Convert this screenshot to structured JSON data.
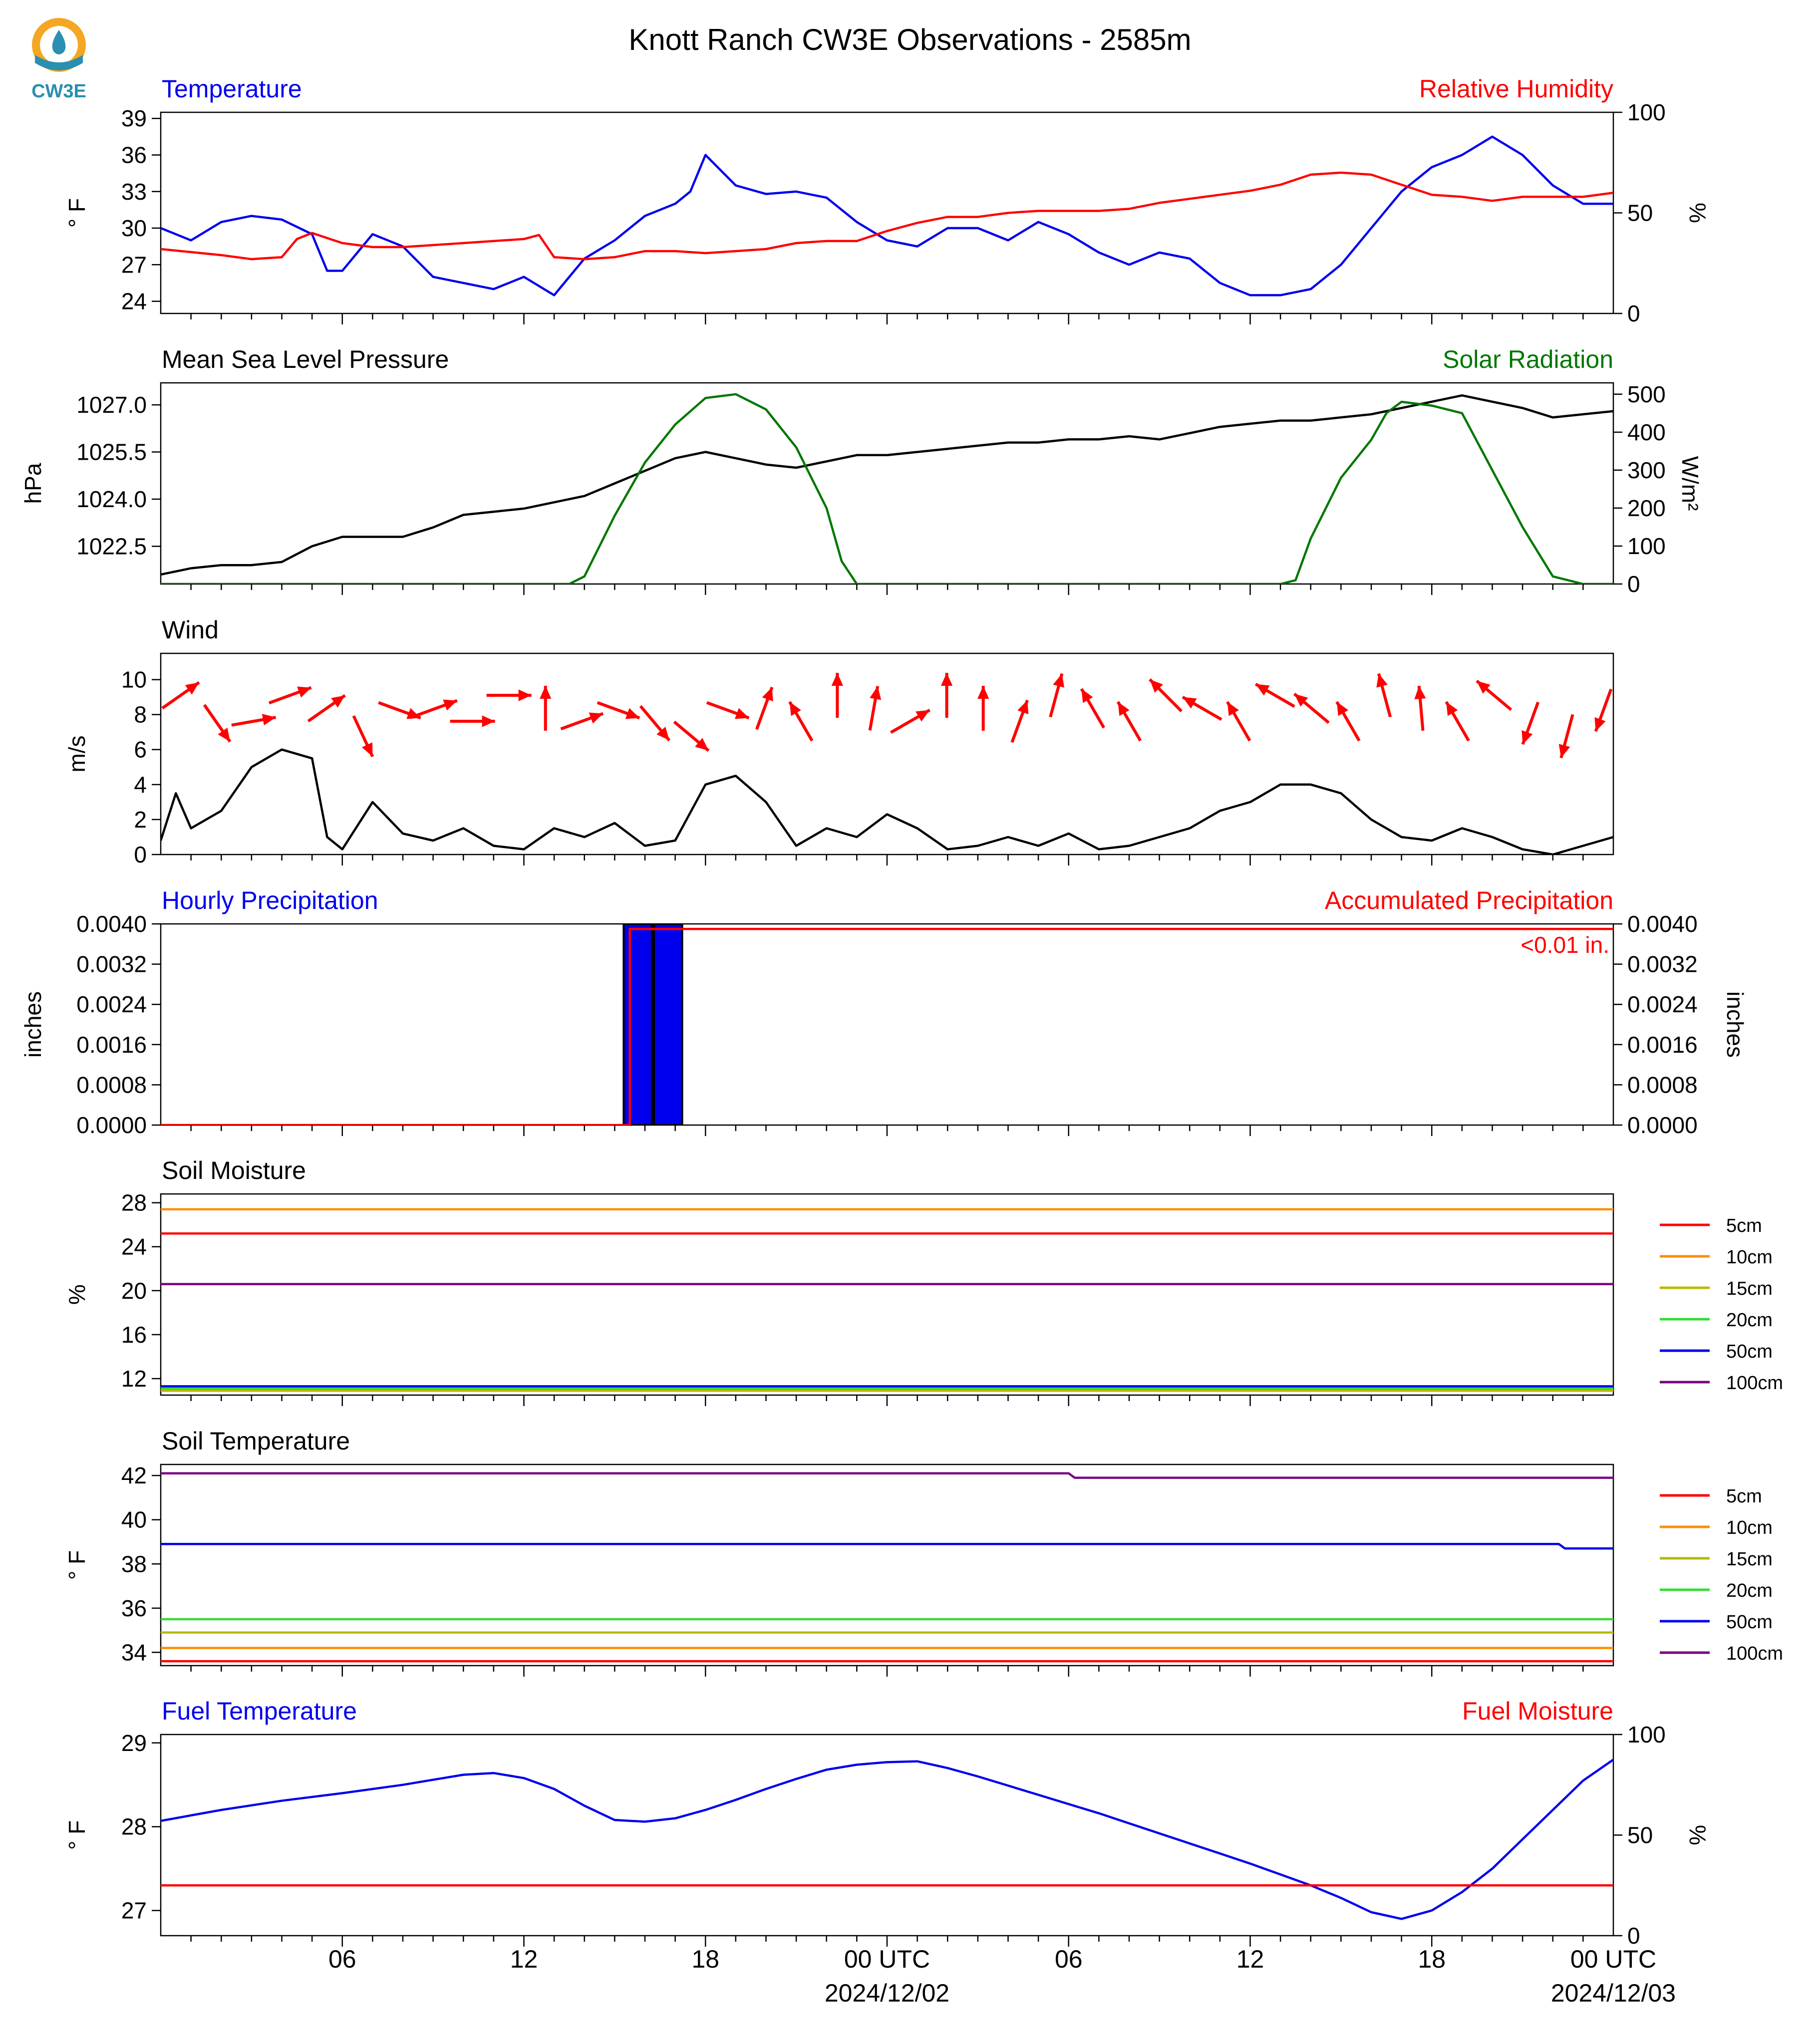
{
  "title": "Knott Ranch CW3E Observations - 2585m",
  "logo": {
    "text": "CW3E",
    "colors": {
      "orange": "#f5a623",
      "teal": "#2a8fb0",
      "navy": "#1d5f86"
    }
  },
  "x_axis": {
    "tick_labels": [
      "06",
      "12",
      "18",
      "00 UTC",
      "06",
      "12",
      "18",
      "00 UTC"
    ],
    "date_labels": [
      "2024/12/02",
      "2024/12/03"
    ]
  },
  "chart_data": [
    {
      "id": "temp-rh",
      "type": "line",
      "left_title": "Temperature",
      "right_title": "Relative Humidity",
      "ylabel": "° F",
      "y2label": "%",
      "ylim": [
        23,
        39.5
      ],
      "y2lim": [
        0,
        100
      ],
      "yticks": [
        24,
        27,
        30,
        33,
        36,
        39
      ],
      "y2ticks": [
        0,
        50,
        100
      ],
      "series": [
        {
          "color": "#0000ee",
          "axis": "left",
          "x": [
            0,
            1,
            2,
            3,
            4,
            5,
            5.5,
            6,
            7,
            8,
            9,
            10,
            11,
            12,
            13,
            14,
            15,
            16,
            17,
            17.5,
            18,
            19,
            20,
            21,
            22,
            23,
            24,
            25,
            26,
            27,
            28,
            29,
            30,
            31,
            32,
            33,
            34,
            35,
            36,
            37,
            38,
            39,
            40,
            41,
            42,
            43,
            44,
            45,
            46,
            47,
            48
          ],
          "y": [
            30,
            29,
            30.5,
            31,
            30.7,
            29.5,
            26.5,
            26.5,
            29.5,
            28.5,
            26,
            25.5,
            25,
            26,
            24.5,
            27.5,
            29,
            31,
            32,
            33,
            36,
            33.5,
            32.8,
            33,
            32.5,
            30.5,
            29,
            28.5,
            30,
            30,
            29,
            30.5,
            29.5,
            28,
            27,
            28,
            27.5,
            25.5,
            24.5,
            24.5,
            25,
            27,
            30,
            33,
            35,
            36,
            37.5,
            36,
            33.5,
            32,
            32
          ]
        },
        {
          "color": "#ff0000",
          "axis": "right",
          "x": [
            0,
            2,
            3,
            4,
            4.5,
            5,
            6,
            7,
            8,
            9,
            10,
            11,
            12,
            12.5,
            13,
            14,
            15,
            16,
            17,
            18,
            19,
            20,
            21,
            22,
            23,
            24,
            25,
            26,
            27,
            28,
            29,
            30,
            31,
            32,
            33,
            34,
            35,
            36,
            37,
            38,
            39,
            40,
            41,
            42,
            43,
            44,
            45,
            46,
            47,
            48
          ],
          "y": [
            32,
            29,
            27,
            28,
            37,
            40,
            35,
            33,
            33,
            34,
            35,
            36,
            37,
            39,
            28,
            27,
            28,
            31,
            31,
            30,
            31,
            32,
            35,
            36,
            36,
            41,
            45,
            48,
            48,
            50,
            51,
            51,
            51,
            52,
            55,
            57,
            59,
            61,
            64,
            69,
            70,
            69,
            64,
            59,
            58,
            56,
            58,
            58,
            58,
            60
          ]
        }
      ]
    },
    {
      "id": "pressure-solar",
      "type": "line",
      "left_title": "Mean Sea Level Pressure",
      "right_title": "Solar Radiation",
      "ylabel": "hPa",
      "y2label": "W/m²",
      "ylim": [
        1021.3,
        1027.7
      ],
      "y2lim": [
        0,
        530
      ],
      "yticks": [
        1022.5,
        1024.0,
        1025.5,
        1027.0
      ],
      "y2ticks": [
        0,
        100,
        200,
        300,
        400,
        500
      ],
      "series": [
        {
          "color": "#000000",
          "axis": "left",
          "x": [
            0,
            1,
            2,
            3,
            4,
            5,
            6,
            7,
            8,
            9,
            10,
            11,
            12,
            13,
            14,
            15,
            16,
            17,
            18,
            19,
            20,
            21,
            22,
            23,
            24,
            25,
            26,
            27,
            28,
            29,
            30,
            31,
            32,
            33,
            34,
            35,
            36,
            37,
            38,
            39,
            40,
            41,
            42,
            43,
            44,
            45,
            46,
            47,
            48
          ],
          "y": [
            1021.6,
            1021.8,
            1021.9,
            1021.9,
            1022.0,
            1022.5,
            1022.8,
            1022.8,
            1022.8,
            1023.1,
            1023.5,
            1023.6,
            1023.7,
            1023.9,
            1024.1,
            1024.5,
            1024.9,
            1025.3,
            1025.5,
            1025.3,
            1025.1,
            1025.0,
            1025.2,
            1025.4,
            1025.4,
            1025.5,
            1025.6,
            1025.7,
            1025.8,
            1025.8,
            1025.9,
            1025.9,
            1026.0,
            1025.9,
            1026.1,
            1026.3,
            1026.4,
            1026.5,
            1026.5,
            1026.6,
            1026.7,
            1026.9,
            1027.1,
            1027.3,
            1027.1,
            1026.9,
            1026.6,
            1026.7,
            1026.8
          ]
        },
        {
          "color": "#007700",
          "axis": "right",
          "x": [
            0,
            13.5,
            14,
            15,
            16,
            17,
            18,
            19,
            20,
            21,
            22,
            22.5,
            23,
            37,
            37.5,
            38,
            39,
            40,
            40.5,
            41,
            42,
            43,
            44,
            45,
            46,
            47,
            48
          ],
          "y": [
            0,
            0,
            20,
            180,
            320,
            420,
            490,
            500,
            460,
            360,
            200,
            60,
            0,
            0,
            10,
            120,
            280,
            380,
            450,
            480,
            470,
            450,
            300,
            150,
            20,
            0,
            0
          ]
        }
      ]
    },
    {
      "id": "wind",
      "type": "line",
      "left_title": "Wind",
      "ylabel": "m/s",
      "ylim": [
        0,
        11.5
      ],
      "yticks": [
        0,
        2,
        4,
        6,
        8,
        10
      ],
      "series": [
        {
          "color": "#000000",
          "axis": "left",
          "x": [
            0,
            0.5,
            1,
            2,
            3,
            4,
            5,
            5.5,
            6,
            7,
            8,
            9,
            10,
            11,
            12,
            13,
            14,
            15,
            16,
            17,
            18,
            19,
            20,
            21,
            22,
            23,
            24,
            25,
            26,
            27,
            28,
            29,
            30,
            31,
            32,
            33,
            34,
            35,
            36,
            37,
            38,
            39,
            40,
            41,
            42,
            43,
            44,
            45,
            46,
            47,
            48
          ],
          "y": [
            0.8,
            3.5,
            1.5,
            2.5,
            5,
            6,
            5.5,
            1,
            0.3,
            3,
            1.2,
            0.8,
            1.5,
            0.5,
            0.3,
            1.5,
            1,
            1.8,
            0.5,
            0.8,
            4,
            4.5,
            3,
            0.5,
            1.5,
            1,
            2.3,
            1.5,
            0.3,
            0.5,
            1,
            0.5,
            1.2,
            0.3,
            0.5,
            1,
            1.5,
            2.5,
            3,
            4,
            4,
            3.5,
            2,
            1,
            0.8,
            1.5,
            1,
            0.3,
            0,
            0.5,
            1
          ]
        }
      ],
      "barb_angles_deg": [
        55,
        145,
        80,
        70,
        55,
        155,
        110,
        70,
        90,
        90,
        0,
        70,
        110,
        140,
        130,
        110,
        20,
        330,
        0,
        10,
        60,
        0,
        0,
        20,
        15,
        330,
        330,
        315,
        300,
        330,
        300,
        310,
        330,
        345,
        355,
        330,
        310,
        200,
        195,
        200
      ]
    },
    {
      "id": "precip",
      "type": "bar",
      "left_title": "Hourly Precipitation",
      "right_title": "Accumulated Precipitation",
      "ylabel": "inches",
      "y2label": "inches",
      "ylim": [
        0,
        0.004
      ],
      "y2lim": [
        0,
        0.004
      ],
      "yticks": [
        0,
        0.0008,
        0.0016,
        0.0024,
        0.0032,
        0.004
      ],
      "ytick_labels": [
        "0.0000",
        "0.0008",
        "0.0016",
        "0.0024",
        "0.0032",
        "0.0040"
      ],
      "hourly": {
        "color": "#0000ee",
        "x": [
          15,
          16
        ],
        "values": [
          0.004,
          0.004
        ]
      },
      "accumulated": {
        "color": "#ff0000",
        "x": [
          0,
          15.5,
          15.5,
          48
        ],
        "values": [
          0,
          0,
          0.0039,
          0.0039
        ]
      },
      "annotation": "<0.01 in."
    },
    {
      "id": "soil-moisture",
      "type": "line",
      "left_title": "Soil Moisture",
      "ylabel": "%",
      "ylim": [
        10.5,
        28.8
      ],
      "yticks": [
        12,
        16,
        20,
        24,
        28
      ],
      "series": [
        {
          "name": "5cm",
          "color": "#ff0000",
          "x": [
            0,
            48
          ],
          "y": [
            25.2,
            25.2
          ]
        },
        {
          "name": "10cm",
          "color": "#ff8c00",
          "x": [
            0,
            48
          ],
          "y": [
            27.4,
            27.4
          ]
        },
        {
          "name": "15cm",
          "color": "#b8b800",
          "x": [
            0,
            48
          ],
          "y": [
            10.9,
            10.9
          ]
        },
        {
          "name": "20cm",
          "color": "#33dd33",
          "x": [
            0,
            48
          ],
          "y": [
            11.1,
            11.1
          ]
        },
        {
          "name": "50cm",
          "color": "#0000ee",
          "x": [
            0,
            48
          ],
          "y": [
            11.3,
            11.3
          ]
        },
        {
          "name": "100cm",
          "color": "#7a0080",
          "x": [
            0,
            48
          ],
          "y": [
            20.6,
            20.6
          ]
        }
      ]
    },
    {
      "id": "soil-temperature",
      "type": "line",
      "left_title": "Soil Temperature",
      "ylabel": "° F",
      "ylim": [
        33.4,
        42.5
      ],
      "yticks": [
        34,
        36,
        38,
        40,
        42
      ],
      "series": [
        {
          "name": "5cm",
          "color": "#ff0000",
          "x": [
            0,
            48
          ],
          "y": [
            33.6,
            33.6
          ]
        },
        {
          "name": "10cm",
          "color": "#ff8c00",
          "x": [
            0,
            48
          ],
          "y": [
            34.2,
            34.2
          ]
        },
        {
          "name": "15cm",
          "color": "#b8b800",
          "x": [
            0,
            48
          ],
          "y": [
            34.9,
            34.9
          ]
        },
        {
          "name": "20cm",
          "color": "#33dd33",
          "x": [
            0,
            48
          ],
          "y": [
            35.5,
            35.5
          ]
        },
        {
          "name": "50cm",
          "color": "#0000ee",
          "x": [
            0,
            46.2,
            46.4,
            48
          ],
          "y": [
            38.9,
            38.9,
            38.7,
            38.7
          ]
        },
        {
          "name": "100cm",
          "color": "#7a0080",
          "x": [
            0,
            30,
            30.2,
            48
          ],
          "y": [
            42.1,
            42.1,
            41.9,
            41.9
          ]
        }
      ]
    },
    {
      "id": "fuel",
      "type": "line",
      "left_title": "Fuel Temperature",
      "right_title": "Fuel Moisture",
      "ylabel": "° F",
      "y2label": "%",
      "ylim": [
        26.7,
        29.1
      ],
      "y2lim": [
        0,
        100
      ],
      "yticks": [
        27,
        28,
        29
      ],
      "y2ticks": [
        0,
        50,
        100
      ],
      "series": [
        {
          "color": "#0000ee",
          "axis": "left",
          "x": [
            0,
            2,
            4,
            6,
            8,
            9,
            10,
            11,
            12,
            13,
            14,
            15,
            16,
            17,
            18,
            19,
            20,
            21,
            22,
            23,
            24,
            25,
            26,
            27,
            28,
            29,
            30,
            31,
            32,
            33,
            34,
            35,
            36,
            37,
            38,
            39,
            40,
            41,
            42,
            43,
            44,
            45,
            46,
            47,
            48
          ],
          "y": [
            28.07,
            28.2,
            28.31,
            28.4,
            28.5,
            28.56,
            28.62,
            28.64,
            28.58,
            28.45,
            28.25,
            28.08,
            28.06,
            28.1,
            28.2,
            28.32,
            28.45,
            28.57,
            28.68,
            28.74,
            28.77,
            28.78,
            28.7,
            28.6,
            28.49,
            28.38,
            28.27,
            28.16,
            28.04,
            27.92,
            27.8,
            27.68,
            27.56,
            27.43,
            27.3,
            27.15,
            26.98,
            26.9,
            27.0,
            27.22,
            27.5,
            27.85,
            28.2,
            28.55,
            28.8
          ]
        },
        {
          "color": "#ff0000",
          "axis": "right",
          "x": [
            0,
            48
          ],
          "y": [
            25,
            25
          ]
        }
      ]
    }
  ]
}
